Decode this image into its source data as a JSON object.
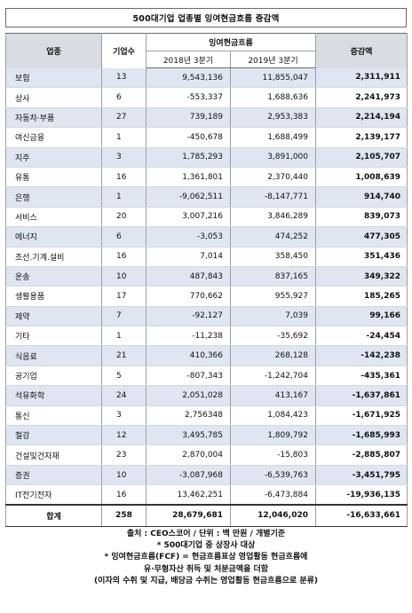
{
  "title": "500대기업 업종별 잉여현금흐름 증감액",
  "headers": {
    "industry": "업종",
    "count": "기업수",
    "fcf_group": "잉여현금흐름",
    "q2018": "2018년 3분기",
    "q2019": "2019년 3분기",
    "change": "증감액"
  },
  "rows": [
    {
      "industry": "보험",
      "count": "13",
      "y2018": "9,543,136",
      "y2019": "11,855,047",
      "change": "2,311,911"
    },
    {
      "industry": "상사",
      "count": "6",
      "y2018": "-553,337",
      "y2019": "1,688,636",
      "change": "2,241,973"
    },
    {
      "industry": "자동차·부품",
      "count": "27",
      "y2018": "739,189",
      "y2019": "2,953,383",
      "change": "2,214,194"
    },
    {
      "industry": "여신금융",
      "count": "1",
      "y2018": "-450,678",
      "y2019": "1,688,499",
      "change": "2,139,177"
    },
    {
      "industry": "지주",
      "count": "3",
      "y2018": "1,785,293",
      "y2019": "3,891,000",
      "change": "2,105,707"
    },
    {
      "industry": "유통",
      "count": "16",
      "y2018": "1,361,801",
      "y2019": "2,370,440",
      "change": "1,008,639"
    },
    {
      "industry": "은행",
      "count": "1",
      "y2018": "-9,062,511",
      "y2019": "-8,147,771",
      "change": "914,740"
    },
    {
      "industry": "서비스",
      "count": "20",
      "y2018": "3,007,216",
      "y2019": "3,846,289",
      "change": "839,073"
    },
    {
      "industry": "에너지",
      "count": "6",
      "y2018": "-3,053",
      "y2019": "474,252",
      "change": "477,305"
    },
    {
      "industry": "조선.기계.설비",
      "count": "16",
      "y2018": "7,014",
      "y2019": "358,450",
      "change": "351,436"
    },
    {
      "industry": "운송",
      "count": "10",
      "y2018": "487,843",
      "y2019": "837,165",
      "change": "349,322"
    },
    {
      "industry": "생활용품",
      "count": "17",
      "y2018": "770,662",
      "y2019": "955,927",
      "change": "185,265"
    },
    {
      "industry": "제약",
      "count": "7",
      "y2018": "-92,127",
      "y2019": "7,039",
      "change": "99,166"
    },
    {
      "industry": "기타",
      "count": "1",
      "y2018": "-11,238",
      "y2019": "-35,692",
      "change": "-24,454"
    },
    {
      "industry": "식음료",
      "count": "21",
      "y2018": "410,366",
      "y2019": "268,128",
      "change": "-142,238"
    },
    {
      "industry": "공기업",
      "count": "5",
      "y2018": "-807,343",
      "y2019": "-1,242,704",
      "change": "-435,361"
    },
    {
      "industry": "석유화학",
      "count": "24",
      "y2018": "2,051,028",
      "y2019": "413,167",
      "change": "-1,637,861"
    },
    {
      "industry": "통신",
      "count": "3",
      "y2018": "2,756348",
      "y2019": "1,084,423",
      "change": "-1,671,925"
    },
    {
      "industry": "철강",
      "count": "12",
      "y2018": "3,495,785",
      "y2019": "1,809,792",
      "change": "-1,685,993"
    },
    {
      "industry": "건설및건자재",
      "count": "23",
      "y2018": "2,870,004",
      "y2019": "-15,803",
      "change": "-2,885,807"
    },
    {
      "industry": "증권",
      "count": "10",
      "y2018": "-3,087,968",
      "y2019": "-6,539,763",
      "change": "-3,451,795"
    },
    {
      "industry": "IT전기전자",
      "count": "16",
      "y2018": "13,462,251",
      "y2019": "-6,473,884",
      "change": "-19,936,135"
    }
  ],
  "total": {
    "industry": "합계",
    "count": "258",
    "y2018": "28,679,681",
    "y2019": "12,046,020",
    "change": "-16,633,661"
  },
  "notes": [
    "출처 : CEO스코어 / 단위 : 백 만원 / 개별기준",
    "* 500대기업 중 상장사 대상",
    "* 잉여현금흐름(FCF) = 현금흐름표상 영업활동 현금흐름에",
    "유·무형자산 취득 및 처분금액을 더함",
    "(이자의 수취 및 지급, 배당금 수취는 영업활동 현금흐름으로 분류)"
  ]
}
